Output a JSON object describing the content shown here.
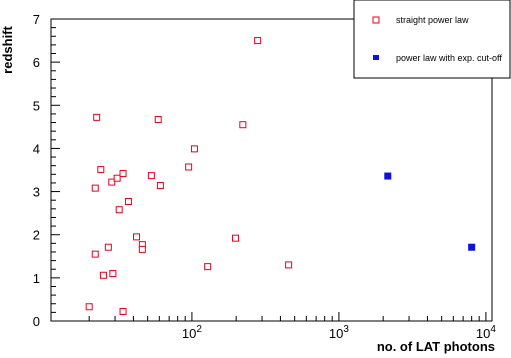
{
  "chart_data": {
    "type": "scatter",
    "xlabel": "no. of LAT photons",
    "ylabel": "redshift",
    "xscale": "log",
    "xlim": [
      11,
      11000
    ],
    "ylim": [
      0,
      7
    ],
    "grid": false,
    "legend_position": "top-right",
    "x_ticks": [
      {
        "value": 100,
        "base": "10",
        "exp": "2"
      },
      {
        "value": 1000,
        "base": "10",
        "exp": "3"
      },
      {
        "value": 10000,
        "base": "10",
        "exp": "4"
      }
    ],
    "y_ticks": [
      {
        "value": 0,
        "label": "0"
      },
      {
        "value": 1,
        "label": "1"
      },
      {
        "value": 2,
        "label": "2"
      },
      {
        "value": 3,
        "label": "3"
      },
      {
        "value": 4,
        "label": "4"
      },
      {
        "value": 5,
        "label": "5"
      },
      {
        "value": 6,
        "label": "6"
      },
      {
        "value": 7,
        "label": "7"
      }
    ],
    "series": [
      {
        "name": "straight power law",
        "marker": "open-square",
        "color": "#e8001c",
        "points": [
          [
            20,
            0.33
          ],
          [
            22,
            1.55
          ],
          [
            22,
            3.08
          ],
          [
            22.5,
            4.72
          ],
          [
            24,
            3.51
          ],
          [
            25,
            1.06
          ],
          [
            27,
            1.71
          ],
          [
            28.5,
            3.22
          ],
          [
            29,
            1.1
          ],
          [
            31,
            3.31
          ],
          [
            32,
            2.58
          ],
          [
            34,
            0.22
          ],
          [
            34,
            3.42
          ],
          [
            37,
            2.77
          ],
          [
            42,
            1.95
          ],
          [
            46,
            1.77
          ],
          [
            46,
            1.66
          ],
          [
            53,
            3.37
          ],
          [
            59,
            4.67
          ],
          [
            61,
            3.14
          ],
          [
            95,
            3.57
          ],
          [
            104,
            3.99
          ],
          [
            128,
            1.26
          ],
          [
            198,
            1.92
          ],
          [
            222,
            4.55
          ],
          [
            280,
            6.5
          ],
          [
            455,
            1.3
          ]
        ]
      },
      {
        "name": "power law with exp. cut-off",
        "marker": "filled-square",
        "color": "#1010e0",
        "points": [
          [
            2150,
            3.36
          ],
          [
            8000,
            1.71
          ]
        ]
      }
    ]
  }
}
